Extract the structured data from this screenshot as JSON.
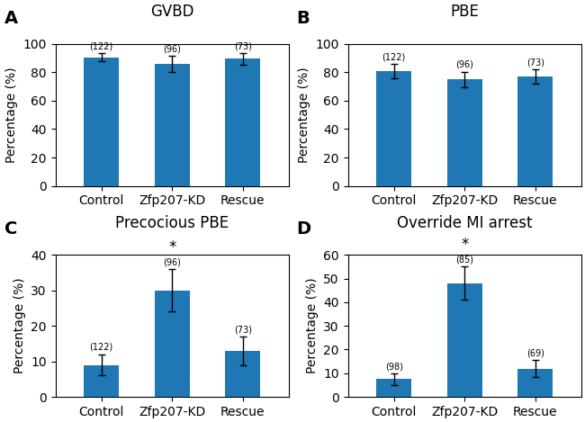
{
  "chart_data": [
    {
      "type": "bar",
      "panel_label": "A",
      "title": "GVBD",
      "categories": [
        "Control",
        "Zfp207-KD",
        "Rescue"
      ],
      "values": [
        90.5,
        86.0,
        89.5
      ],
      "errors": [
        3.0,
        5.5,
        4.0
      ],
      "n_labels": [
        "(122)",
        "(96)",
        "(73)"
      ],
      "ylim": [
        0,
        100
      ],
      "yticks": [
        0,
        20,
        40,
        60,
        80,
        100
      ],
      "y_label": "Percentage (%)",
      "annotations": []
    },
    {
      "type": "bar",
      "panel_label": "B",
      "title": "PBE",
      "categories": [
        "Control",
        "Zfp207-KD",
        "Rescue"
      ],
      "values": [
        81.0,
        75.0,
        77.0
      ],
      "errors": [
        5.0,
        5.5,
        5.0
      ],
      "n_labels": [
        "(122)",
        "(96)",
        "(73)"
      ],
      "ylim": [
        0,
        100
      ],
      "yticks": [
        0,
        20,
        40,
        60,
        80,
        100
      ],
      "y_label": "Percentage (%)",
      "annotations": []
    },
    {
      "type": "bar",
      "panel_label": "C",
      "title": "Precocious PBE",
      "categories": [
        "Control",
        "Zfp207-KD",
        "Rescue"
      ],
      "values": [
        9.0,
        30.0,
        13.0
      ],
      "errors": [
        3.0,
        6.0,
        4.0
      ],
      "n_labels": [
        "(122)",
        "(96)",
        "(73)"
      ],
      "ylim": [
        0,
        40
      ],
      "yticks": [
        0,
        10,
        20,
        30,
        40
      ],
      "y_label": "Percentage (%)",
      "annotations": [
        {
          "category": "Zfp207-KD",
          "text": "*"
        }
      ]
    },
    {
      "type": "bar",
      "panel_label": "D",
      "title": "Override MI arrest",
      "categories": [
        "Control",
        "Zfp207-KD",
        "Rescue"
      ],
      "values": [
        7.5,
        48.0,
        12.0
      ],
      "errors": [
        2.5,
        7.0,
        3.5
      ],
      "n_labels": [
        "(98)",
        "(85)",
        "(69)"
      ],
      "ylim": [
        0,
        60
      ],
      "yticks": [
        0,
        10,
        20,
        30,
        40,
        50,
        60
      ],
      "y_label": "Percentage (%)",
      "annotations": [
        {
          "category": "Zfp207-KD",
          "text": "*"
        }
      ]
    }
  ]
}
